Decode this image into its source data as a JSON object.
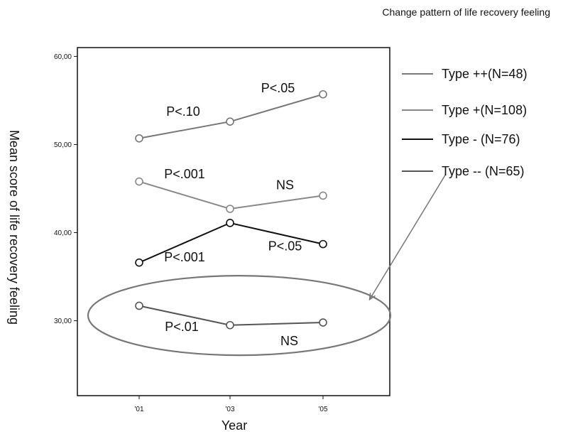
{
  "chart_data": {
    "type": "line",
    "title": "Change pattern of life recovery feeling",
    "xlabel": "Year",
    "ylabel": "Mean score of life recovery feeling",
    "categories": [
      "'01",
      "'03",
      "'05"
    ],
    "yticks": [
      "60,00",
      "50,00",
      "40,00",
      "30,00"
    ],
    "ylim": [
      21.5,
      61
    ],
    "grid": false,
    "legend_position": "right",
    "series": [
      {
        "name": "Type ++(N=48)",
        "values": [
          50.7,
          52.6,
          55.7
        ],
        "color": "#777777"
      },
      {
        "name": "Type +(N=108)",
        "values": [
          45.8,
          42.7,
          44.2
        ],
        "color": "#888888"
      },
      {
        "name": "Type - (N=76)",
        "values": [
          36.6,
          41.1,
          38.7
        ],
        "color": "#111111"
      },
      {
        "name": "Type -- (N=65)",
        "values": [
          31.7,
          29.5,
          29.8
        ],
        "color": "#555555"
      }
    ],
    "annotations": [
      {
        "text": "P<.10",
        "series": 0,
        "segment": 0
      },
      {
        "text": "P<.05",
        "series": 0,
        "segment": 1
      },
      {
        "text": "P<.001",
        "series": 1,
        "segment": 0
      },
      {
        "text": "NS",
        "series": 1,
        "segment": 1
      },
      {
        "text": "P<.001",
        "series": 2,
        "segment": 0
      },
      {
        "text": "P<.05",
        "series": 2,
        "segment": 1
      },
      {
        "text": "P<.01",
        "series": 3,
        "segment": 0
      },
      {
        "text": "NS",
        "series": 3,
        "segment": 1
      }
    ],
    "highlight": {
      "series": 3,
      "shape": "ellipse",
      "color": "#777777",
      "arrow_from": "legend"
    }
  }
}
